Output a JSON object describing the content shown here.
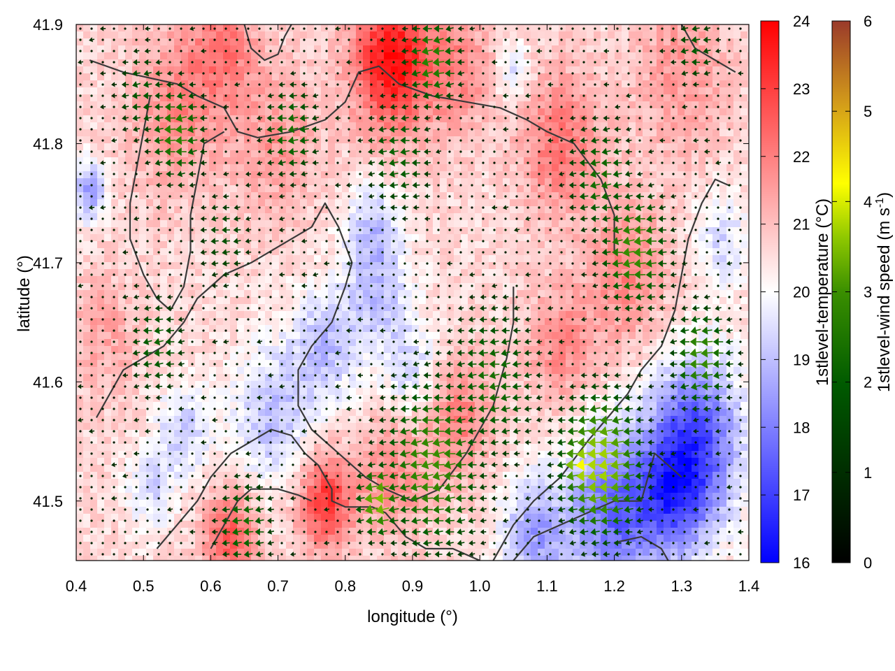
{
  "chart_data": {
    "type": "heatmap",
    "title": "",
    "xlabel": "longitude (°)",
    "ylabel": "latitude (°)",
    "xlim": [
      0.4,
      1.4
    ],
    "ylim": [
      41.45,
      41.9
    ],
    "xticks": [
      "0.4",
      "0.5",
      "0.6",
      "0.7",
      "0.8",
      "0.9",
      "1.0",
      "1.1",
      "1.2",
      "1.3",
      "1.4"
    ],
    "xtick_values": [
      0.4,
      0.5,
      0.6,
      0.7,
      0.8,
      0.9,
      1.0,
      1.1,
      1.2,
      1.3,
      1.4
    ],
    "yticks": [
      "41.5",
      "41.6",
      "41.7",
      "41.8",
      "41.9"
    ],
    "ytick_values": [
      41.5,
      41.6,
      41.7,
      41.8,
      41.9
    ],
    "temperature_colorbar": {
      "label": "1stlevel-temperature (°C)",
      "range": [
        16,
        24
      ],
      "ticks": [
        "16",
        "17",
        "18",
        "19",
        "20",
        "21",
        "22",
        "23",
        "24"
      ],
      "colors": [
        "#0000ff",
        "#ffffff",
        "#ff0000"
      ]
    },
    "wind_colorbar": {
      "label_main": "1stlevel-wind speed (m s",
      "label_sup": "-1",
      "label_end": ")",
      "range": [
        0,
        6
      ],
      "ticks": [
        "0",
        "1",
        "2",
        "3",
        "4",
        "5",
        "6"
      ],
      "colors": [
        "#000000",
        "#006400",
        "#228b22",
        "#7cbb00",
        "#ffff00",
        "#d4a017",
        "#a0522d"
      ]
    },
    "temperature_field": {
      "background": 20.6,
      "anomalies": [
        {
          "lon": 0.87,
          "lat": 41.87,
          "r": 0.06,
          "t": 3.2
        },
        {
          "lon": 0.62,
          "lat": 41.88,
          "r": 0.05,
          "t": 1.4
        },
        {
          "lon": 0.55,
          "lat": 41.83,
          "r": 0.07,
          "t": 1.2
        },
        {
          "lon": 0.7,
          "lat": 41.8,
          "r": 0.06,
          "t": 1.0
        },
        {
          "lon": 0.97,
          "lat": 41.86,
          "r": 0.05,
          "t": 1.2
        },
        {
          "lon": 1.12,
          "lat": 41.8,
          "r": 0.06,
          "t": 1.6
        },
        {
          "lon": 1.3,
          "lat": 41.86,
          "r": 0.07,
          "t": 1.0
        },
        {
          "lon": 1.22,
          "lat": 41.69,
          "r": 0.06,
          "t": 1.3
        },
        {
          "lon": 1.12,
          "lat": 41.63,
          "r": 0.05,
          "t": 1.2
        },
        {
          "lon": 0.97,
          "lat": 41.57,
          "r": 0.05,
          "t": 1.4
        },
        {
          "lon": 0.87,
          "lat": 41.52,
          "r": 0.05,
          "t": 1.2
        },
        {
          "lon": 0.77,
          "lat": 41.5,
          "r": 0.04,
          "t": 2.6
        },
        {
          "lon": 0.63,
          "lat": 41.47,
          "r": 0.04,
          "t": 2.0
        },
        {
          "lon": 0.44,
          "lat": 41.64,
          "r": 0.05,
          "t": 0.8
        },
        {
          "lon": 0.42,
          "lat": 41.76,
          "r": 0.025,
          "t": -2.2
        },
        {
          "lon": 0.69,
          "lat": 41.57,
          "r": 0.06,
          "t": -1.6
        },
        {
          "lon": 0.56,
          "lat": 41.56,
          "r": 0.04,
          "t": -1.4
        },
        {
          "lon": 0.51,
          "lat": 41.51,
          "r": 0.035,
          "t": -1.2
        },
        {
          "lon": 0.77,
          "lat": 41.63,
          "r": 0.05,
          "t": -1.6
        },
        {
          "lon": 0.85,
          "lat": 41.67,
          "r": 0.05,
          "t": -1.4
        },
        {
          "lon": 0.9,
          "lat": 41.61,
          "r": 0.04,
          "t": -1.2
        },
        {
          "lon": 0.84,
          "lat": 41.73,
          "r": 0.04,
          "t": -1.4
        },
        {
          "lon": 1.32,
          "lat": 41.55,
          "r": 0.07,
          "t": -3.4
        },
        {
          "lon": 1.2,
          "lat": 41.49,
          "r": 0.07,
          "t": -3.0
        },
        {
          "lon": 1.08,
          "lat": 41.47,
          "r": 0.05,
          "t": -2.0
        },
        {
          "lon": 1.29,
          "lat": 41.5,
          "r": 0.05,
          "t": -2.0
        },
        {
          "lon": 1.36,
          "lat": 41.72,
          "r": 0.04,
          "t": -1.2
        },
        {
          "lon": 1.05,
          "lat": 41.86,
          "r": 0.025,
          "t": -1.2
        }
      ]
    },
    "wind_field": {
      "direction": "from east-northeast",
      "fast_zones": [
        {
          "lon": 0.93,
          "lat": 41.53,
          "r": 0.09,
          "speed": 3.0
        },
        {
          "lon": 0.85,
          "lat": 41.5,
          "r": 0.035,
          "speed": 3.6
        },
        {
          "lon": 1.18,
          "lat": 41.53,
          "r": 0.07,
          "speed": 3.8
        },
        {
          "lon": 1.15,
          "lat": 41.53,
          "r": 0.025,
          "speed": 4.3
        },
        {
          "lon": 1.23,
          "lat": 41.71,
          "r": 0.06,
          "speed": 3.0
        },
        {
          "lon": 1.33,
          "lat": 41.62,
          "r": 0.05,
          "speed": 3.0
        },
        {
          "lon": 0.93,
          "lat": 41.87,
          "r": 0.05,
          "speed": 2.8
        },
        {
          "lon": 0.55,
          "lat": 41.81,
          "r": 0.05,
          "speed": 2.8
        },
        {
          "lon": 0.72,
          "lat": 41.81,
          "r": 0.05,
          "speed": 2.4
        },
        {
          "lon": 0.88,
          "lat": 41.79,
          "r": 0.06,
          "speed": 2.2
        },
        {
          "lon": 1.18,
          "lat": 41.77,
          "r": 0.06,
          "speed": 2.4
        },
        {
          "lon": 1.02,
          "lat": 41.6,
          "r": 0.08,
          "speed": 2.4
        },
        {
          "lon": 0.52,
          "lat": 41.63,
          "r": 0.05,
          "speed": 2.2
        },
        {
          "lon": 0.62,
          "lat": 41.72,
          "r": 0.05,
          "speed": 1.8
        },
        {
          "lon": 0.65,
          "lat": 41.48,
          "r": 0.05,
          "speed": 2.4
        },
        {
          "lon": 0.5,
          "lat": 41.84,
          "r": 0.05,
          "speed": 2.0
        },
        {
          "lon": 1.32,
          "lat": 41.88,
          "r": 0.04,
          "speed": 2.0
        }
      ]
    },
    "contour_lines": [
      [
        [
          0.42,
          41.87
        ],
        [
          0.47,
          41.86
        ],
        [
          0.51,
          41.855
        ],
        [
          0.55,
          41.85
        ],
        [
          0.58,
          41.84
        ],
        [
          0.6,
          41.835
        ],
        [
          0.62,
          41.83
        ],
        [
          0.64,
          41.81
        ],
        [
          0.67,
          41.805
        ],
        [
          0.72,
          41.81
        ],
        [
          0.77,
          41.82
        ],
        [
          0.8,
          41.835
        ],
        [
          0.82,
          41.86
        ],
        [
          0.85,
          41.865
        ],
        [
          0.88,
          41.85
        ],
        [
          0.93,
          41.84
        ],
        [
          0.98,
          41.835
        ],
        [
          1.03,
          41.83
        ],
        [
          1.07,
          41.82
        ],
        [
          1.1,
          41.81
        ],
        [
          1.14,
          41.8
        ],
        [
          1.18,
          41.77
        ],
        [
          1.2,
          41.74
        ],
        [
          1.2,
          41.71
        ]
      ],
      [
        [
          0.51,
          41.84
        ],
        [
          0.5,
          41.81
        ],
        [
          0.49,
          41.78
        ],
        [
          0.48,
          41.75
        ],
        [
          0.48,
          41.72
        ],
        [
          0.5,
          41.69
        ],
        [
          0.52,
          41.67
        ],
        [
          0.54,
          41.66
        ],
        [
          0.56,
          41.68
        ],
        [
          0.57,
          41.71
        ],
        [
          0.57,
          41.74
        ],
        [
          0.58,
          41.77
        ],
        [
          0.59,
          41.8
        ],
        [
          0.62,
          41.81
        ]
      ],
      [
        [
          0.43,
          41.57
        ],
        [
          0.47,
          41.61
        ],
        [
          0.5,
          41.62
        ],
        [
          0.53,
          41.63
        ],
        [
          0.56,
          41.65
        ],
        [
          0.58,
          41.67
        ],
        [
          0.6,
          41.68
        ],
        [
          0.62,
          41.69
        ],
        [
          0.66,
          41.7
        ],
        [
          0.69,
          41.71
        ],
        [
          0.72,
          41.72
        ],
        [
          0.75,
          41.73
        ],
        [
          0.77,
          41.75
        ],
        [
          0.79,
          41.73
        ],
        [
          0.81,
          41.7
        ],
        [
          0.8,
          41.68
        ],
        [
          0.78,
          41.65
        ],
        [
          0.75,
          41.63
        ],
        [
          0.73,
          41.61
        ],
        [
          0.73,
          41.58
        ],
        [
          0.75,
          41.56
        ],
        [
          0.79,
          41.54
        ],
        [
          0.83,
          41.52
        ],
        [
          0.86,
          41.51
        ],
        [
          0.9,
          41.5
        ],
        [
          0.94,
          41.51
        ],
        [
          0.98,
          41.54
        ],
        [
          1.02,
          41.58
        ],
        [
          1.04,
          41.62
        ],
        [
          1.05,
          41.65
        ],
        [
          1.05,
          41.68
        ]
      ],
      [
        [
          0.52,
          41.46
        ],
        [
          0.55,
          41.48
        ],
        [
          0.58,
          41.5
        ],
        [
          0.6,
          41.52
        ],
        [
          0.63,
          41.54
        ],
        [
          0.66,
          41.55
        ],
        [
          0.69,
          41.56
        ],
        [
          0.72,
          41.555
        ],
        [
          0.74,
          41.54
        ],
        [
          0.76,
          41.53
        ],
        [
          0.78,
          41.51
        ],
        [
          0.78,
          41.5
        ],
        [
          0.8,
          41.495
        ],
        [
          0.84,
          41.495
        ],
        [
          0.86,
          41.49
        ],
        [
          0.89,
          41.47
        ],
        [
          0.92,
          41.46
        ],
        [
          0.96,
          41.46
        ],
        [
          1.0,
          41.45
        ]
      ],
      [
        [
          1.02,
          41.45
        ],
        [
          1.05,
          41.48
        ],
        [
          1.08,
          41.5
        ],
        [
          1.12,
          41.52
        ],
        [
          1.16,
          41.55
        ],
        [
          1.19,
          41.57
        ],
        [
          1.22,
          41.59
        ],
        [
          1.24,
          41.61
        ],
        [
          1.27,
          41.63
        ],
        [
          1.29,
          41.66
        ],
        [
          1.3,
          41.69
        ],
        [
          1.31,
          41.72
        ],
        [
          1.33,
          41.75
        ],
        [
          1.35,
          41.77
        ],
        [
          1.37,
          41.765
        ]
      ],
      [
        [
          1.05,
          41.45
        ],
        [
          1.08,
          41.47
        ],
        [
          1.12,
          41.48
        ],
        [
          1.16,
          41.49
        ],
        [
          1.2,
          41.5
        ],
        [
          1.24,
          41.5
        ],
        [
          1.25,
          41.52
        ],
        [
          1.26,
          41.54
        ],
        [
          1.28,
          41.53
        ],
        [
          1.3,
          41.52
        ]
      ],
      [
        [
          0.6,
          41.46
        ],
        [
          0.62,
          41.48
        ],
        [
          0.64,
          41.5
        ],
        [
          0.66,
          41.51
        ],
        [
          0.7,
          41.51
        ],
        [
          0.73,
          41.505
        ],
        [
          0.75,
          41.5
        ]
      ],
      [
        [
          1.2,
          41.465
        ],
        [
          1.24,
          41.47
        ],
        [
          1.27,
          41.46
        ],
        [
          1.28,
          41.45
        ]
      ],
      [
        [
          0.65,
          41.9
        ],
        [
          0.66,
          41.88
        ],
        [
          0.68,
          41.87
        ],
        [
          0.7,
          41.875
        ],
        [
          0.71,
          41.89
        ],
        [
          0.72,
          41.9
        ]
      ],
      [
        [
          1.3,
          41.9
        ],
        [
          1.32,
          41.88
        ],
        [
          1.35,
          41.87
        ],
        [
          1.38,
          41.86
        ]
      ]
    ]
  }
}
